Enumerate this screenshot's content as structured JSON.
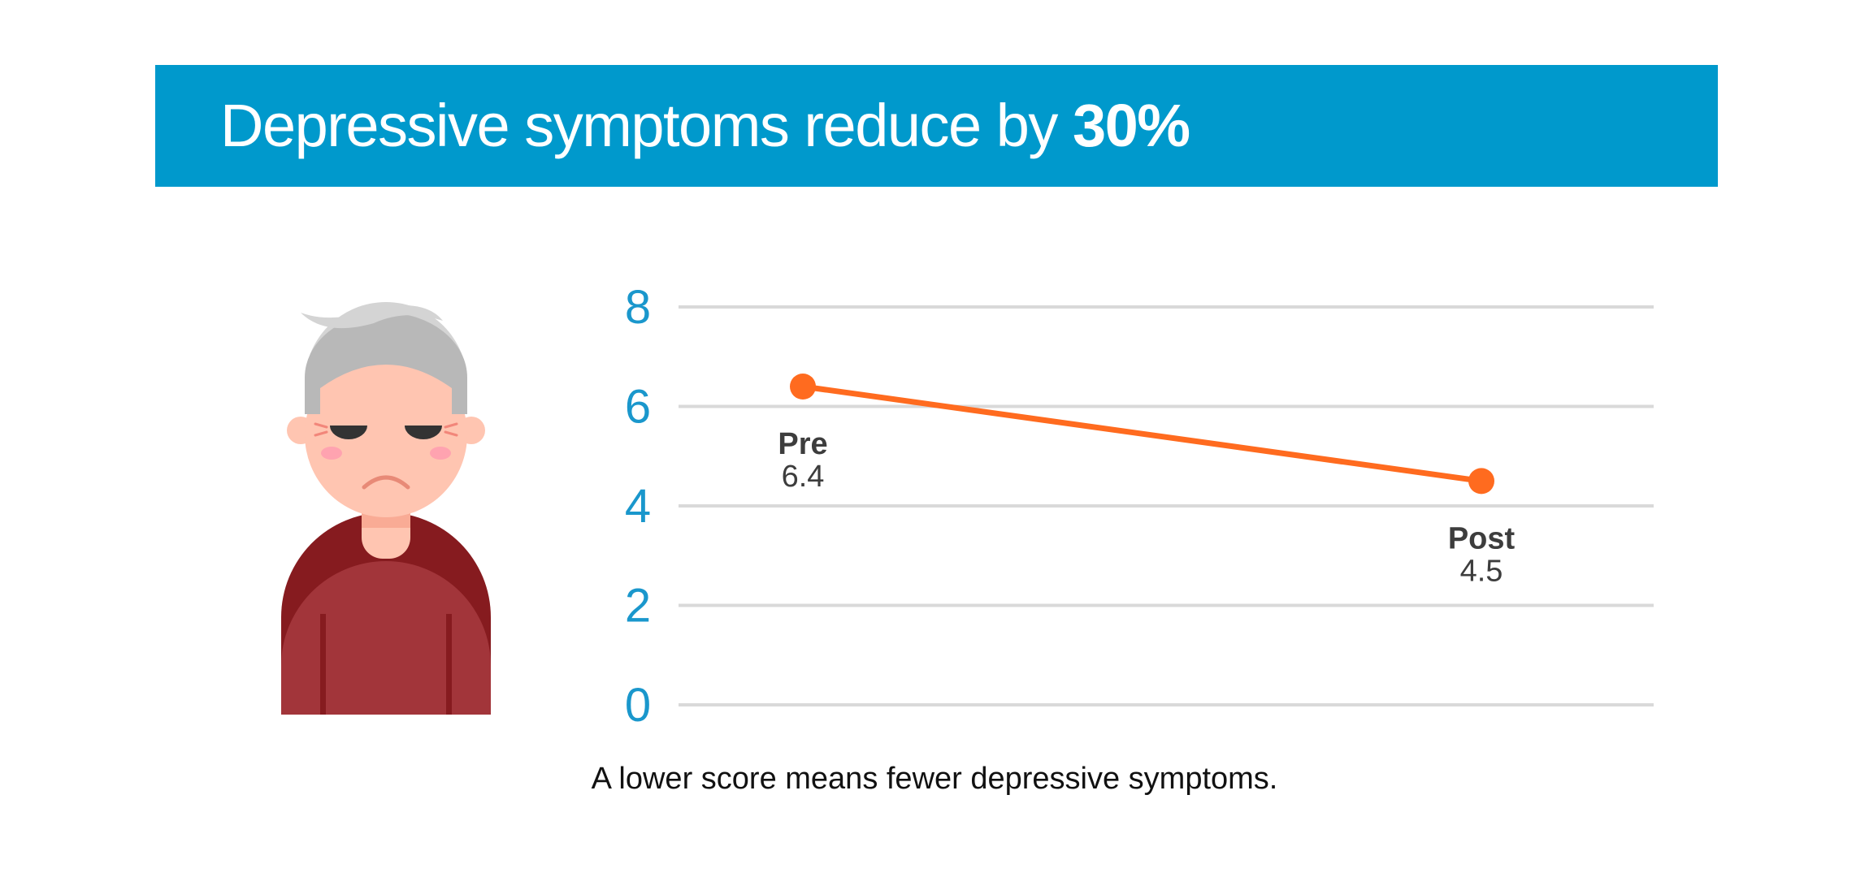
{
  "header": {
    "title_prefix": "Depressive symptoms reduce by",
    "title_highlight": "30%"
  },
  "caption": "A lower score means fewer depressive symptoms.",
  "colors": {
    "banner": "#0099cc",
    "axis_ticks": "#1a97cc",
    "line": "#ff6b1f",
    "grid": "#d9d9d9",
    "label_text": "#3d3d3d"
  },
  "illustration": {
    "icon": "sad-elderly-person-icon"
  },
  "chart_data": {
    "type": "line",
    "categories": [
      "Pre",
      "Post"
    ],
    "series": [
      {
        "values": [
          6.4,
          4.5
        ]
      }
    ],
    "data_labels": [
      "6.4",
      "4.5"
    ],
    "ylim": [
      0,
      8
    ],
    "yticks": [
      0,
      2,
      4,
      6,
      8
    ],
    "grid": true,
    "legend": "none",
    "title": "",
    "xlabel": "",
    "ylabel": ""
  }
}
